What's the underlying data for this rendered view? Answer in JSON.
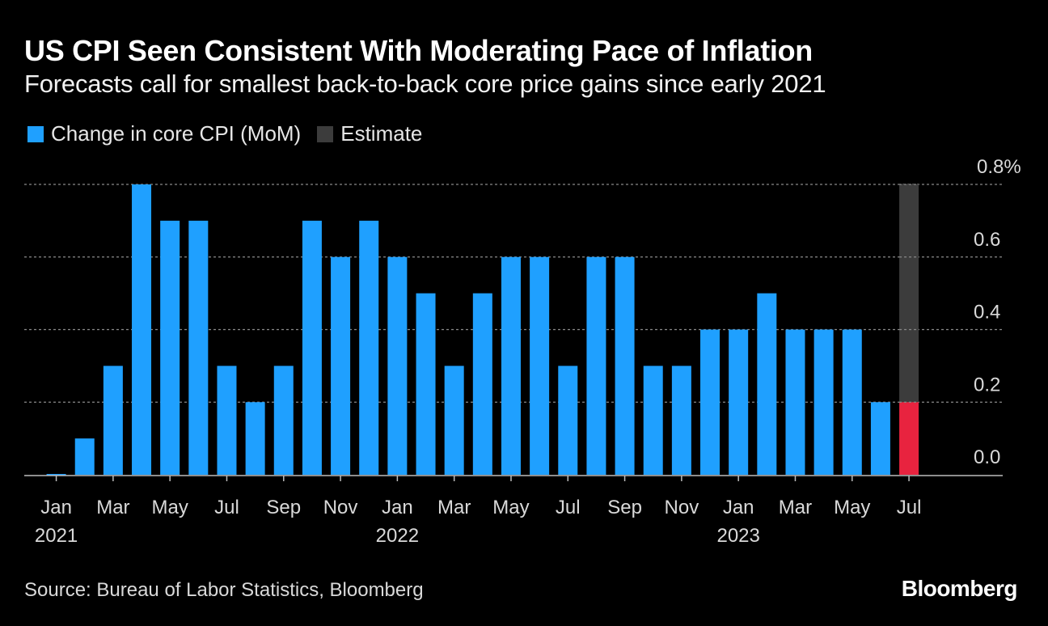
{
  "header": {
    "title": "US CPI Seen Consistent With Moderating Pace of Inflation",
    "subtitle": "Forecasts call for smallest back-to-back core price gains since early 2021"
  },
  "legend": {
    "items": [
      {
        "label": "Change in core CPI (MoM)",
        "color": "#1fa0ff"
      },
      {
        "label": "Estimate",
        "color": "#3c3c3c"
      }
    ]
  },
  "footer": {
    "source": "Source: Bureau of Labor Statistics, Bloomberg",
    "brand": "Bloomberg"
  },
  "chart_data": {
    "type": "bar",
    "categories": [
      "Jan 2021",
      "Feb 2021",
      "Mar 2021",
      "Apr 2021",
      "May 2021",
      "Jun 2021",
      "Jul 2021",
      "Aug 2021",
      "Sep 2021",
      "Oct 2021",
      "Nov 2021",
      "Dec 2021",
      "Jan 2022",
      "Feb 2022",
      "Mar 2022",
      "Apr 2022",
      "May 2022",
      "Jun 2022",
      "Jul 2022",
      "Aug 2022",
      "Sep 2022",
      "Oct 2022",
      "Nov 2022",
      "Dec 2022",
      "Jan 2023",
      "Feb 2023",
      "Mar 2023",
      "Apr 2023",
      "May 2023",
      "Jun 2023",
      "Jul 2023"
    ],
    "series": [
      {
        "name": "Change in core CPI (MoM)",
        "values": [
          0.0,
          0.1,
          0.3,
          0.8,
          0.7,
          0.7,
          0.3,
          0.2,
          0.3,
          0.7,
          0.6,
          0.7,
          0.6,
          0.5,
          0.3,
          0.5,
          0.6,
          0.6,
          0.3,
          0.6,
          0.6,
          0.3,
          0.3,
          0.4,
          0.4,
          0.5,
          0.4,
          0.4,
          0.4,
          0.2,
          0.2
        ]
      },
      {
        "name": "Estimate",
        "category": "Jul 2023",
        "range": [
          0.2,
          0.8
        ]
      }
    ],
    "highlight": {
      "category": "Jul 2023",
      "value": 0.2,
      "color": "#e8233f"
    },
    "ylim": [
      0,
      0.8
    ],
    "yticks": [
      {
        "value": 0.8,
        "label": "0.8%"
      },
      {
        "value": 0.6,
        "label": "0.6"
      },
      {
        "value": 0.4,
        "label": "0.4"
      },
      {
        "value": 0.2,
        "label": "0.2"
      },
      {
        "value": 0.0,
        "label": "0.0"
      }
    ],
    "xticks": [
      {
        "index": 0,
        "label": "Jan",
        "year": "2021"
      },
      {
        "index": 2,
        "label": "Mar"
      },
      {
        "index": 4,
        "label": "May"
      },
      {
        "index": 6,
        "label": "Jul"
      },
      {
        "index": 8,
        "label": "Sep"
      },
      {
        "index": 10,
        "label": "Nov"
      },
      {
        "index": 12,
        "label": "Jan",
        "year": "2022"
      },
      {
        "index": 14,
        "label": "Mar"
      },
      {
        "index": 16,
        "label": "May"
      },
      {
        "index": 18,
        "label": "Jul"
      },
      {
        "index": 20,
        "label": "Sep"
      },
      {
        "index": 22,
        "label": "Nov"
      },
      {
        "index": 24,
        "label": "Jan",
        "year": "2023"
      },
      {
        "index": 26,
        "label": "Mar"
      },
      {
        "index": 28,
        "label": "May"
      },
      {
        "index": 30,
        "label": "Jul"
      }
    ],
    "grid": true,
    "xlabel": "",
    "ylabel": ""
  }
}
